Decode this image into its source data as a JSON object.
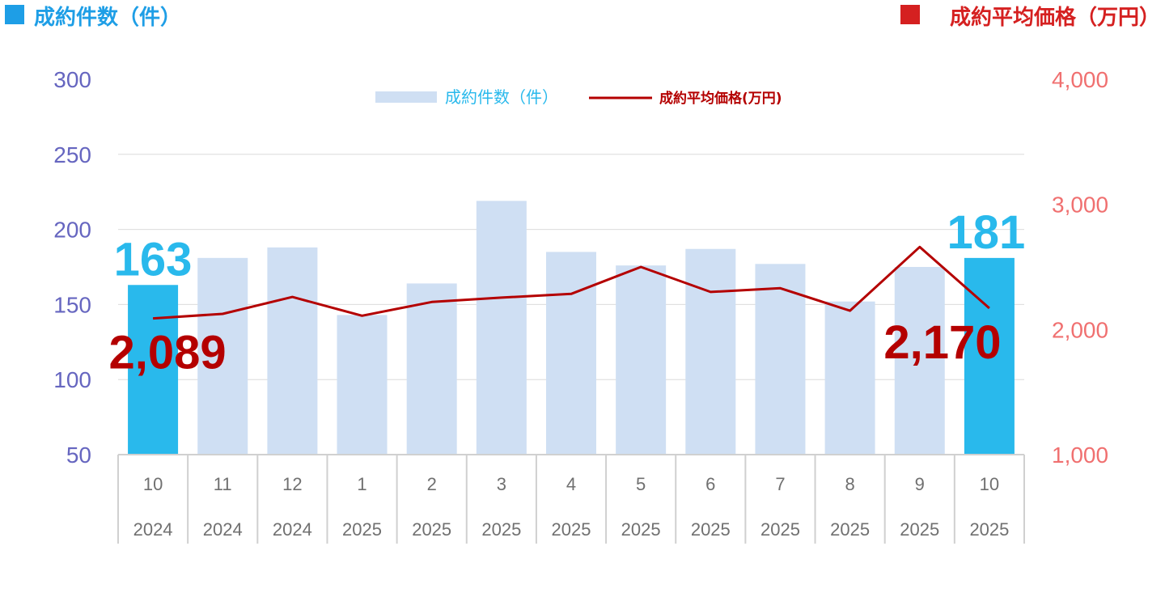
{
  "header": {
    "left_label": "成約件数（件）",
    "right_label": "成約平均価格（万円）"
  },
  "colors": {
    "bar": "#cfdff3",
    "bar_highlight": "#29b9ec",
    "line": "#b40000",
    "left_axis": "#6666c0",
    "right_axis": "#f07070",
    "left_header": "#1e9ee6",
    "right_header": "#d52020",
    "grid": "#dcdcdc"
  },
  "chart_data": {
    "type": "bar",
    "categories": [
      "10",
      "11",
      "12",
      "1",
      "2",
      "3",
      "4",
      "5",
      "6",
      "7",
      "8",
      "9",
      "10"
    ],
    "years": [
      "2024",
      "2024",
      "2024",
      "2025",
      "2025",
      "2025",
      "2025",
      "2025",
      "2025",
      "2025",
      "2025",
      "2025",
      "2025"
    ],
    "series": [
      {
        "name": "成約件数（件）",
        "type": "bar",
        "axis": "left",
        "values": [
          163,
          181,
          188,
          143,
          164,
          219,
          185,
          176,
          187,
          177,
          152,
          175,
          181
        ],
        "highlight_indices": [
          0,
          12
        ]
      },
      {
        "name": "成約平均価格(万円)",
        "type": "line",
        "axis": "right",
        "values": [
          2089,
          2125,
          2260,
          2110,
          2220,
          2255,
          2285,
          2500,
          2300,
          2330,
          2150,
          2660,
          2170
        ]
      }
    ],
    "left_axis": {
      "min": 50,
      "max": 300,
      "ticks": [
        "300",
        "250",
        "200",
        "150",
        "100",
        "50"
      ]
    },
    "right_axis": {
      "min": 1000,
      "max": 4000,
      "ticks": [
        "4,000",
        "3,000",
        "2,000",
        "1,000"
      ]
    },
    "annotations": {
      "bar_first": "163",
      "bar_last": "181",
      "line_first": "2,089",
      "line_last": "2,170"
    },
    "grid": true,
    "legend": "top-center"
  }
}
